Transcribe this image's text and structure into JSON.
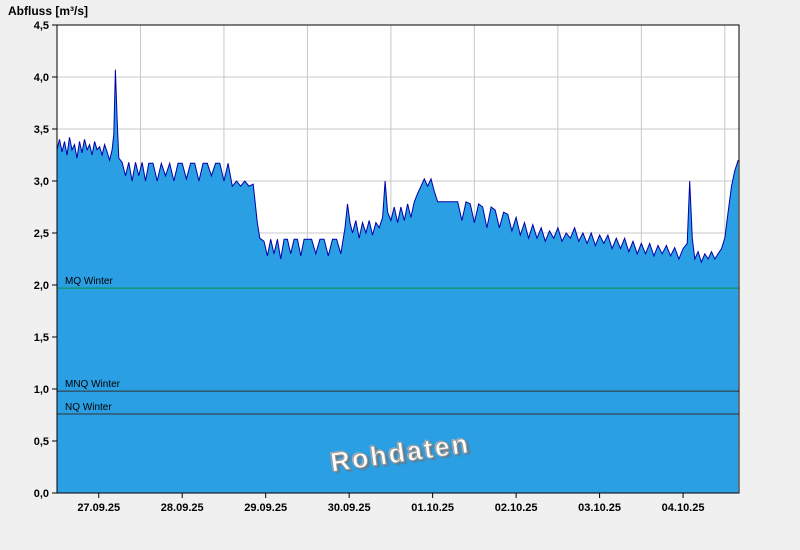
{
  "title": "Abfluss [m³/s]",
  "watermark": "Rohdaten",
  "chart_data": {
    "type": "area",
    "title": "Abfluss [m³/s]",
    "ylabel": "Abfluss [m³/s]",
    "series_name": "Abfluss Rohdaten",
    "ylim": [
      0,
      4.5
    ],
    "y_tick_step": 0.5,
    "y_tick_labels": [
      "0,0",
      "0,5",
      "1,0",
      "1,5",
      "2,0",
      "2,5",
      "3,0",
      "3,5",
      "4,0",
      "4,5"
    ],
    "x_tick_labels": [
      "27.09.25",
      "28.09.25",
      "29.09.25",
      "30.09.25",
      "01.10.25",
      "02.10.25",
      "03.10.25",
      "04.10.25"
    ],
    "x_label_positions": [
      0.5,
      1.5,
      2.5,
      3.5,
      4.5,
      5.5,
      6.5,
      7.5
    ],
    "x_day_boundaries": [
      1,
      2,
      3,
      4,
      5,
      6,
      7,
      8
    ],
    "x_range_days": [
      0,
      8.17
    ],
    "grid": true,
    "legend": "none",
    "colors": {
      "fill": "#2B9FE3",
      "line": "#0000A8",
      "grid": "#c8c8c8",
      "frame": "#000000",
      "mq_line": "#009944",
      "ref_line": "#303030",
      "plot_bg": "#ffffff",
      "page_bg": "#f0f0f0"
    },
    "reference_lines": [
      {
        "label": "MQ Winter",
        "value": 1.97,
        "color": "#009944"
      },
      {
        "label": "MNQ Winter",
        "value": 0.98,
        "color": "#303030"
      },
      {
        "label": "NQ Winter",
        "value": 0.76,
        "color": "#303030"
      }
    ],
    "points": [
      [
        0.0,
        3.3
      ],
      [
        0.03,
        3.4
      ],
      [
        0.06,
        3.28
      ],
      [
        0.09,
        3.38
      ],
      [
        0.12,
        3.25
      ],
      [
        0.15,
        3.42
      ],
      [
        0.18,
        3.3
      ],
      [
        0.21,
        3.35
      ],
      [
        0.24,
        3.22
      ],
      [
        0.27,
        3.38
      ],
      [
        0.3,
        3.27
      ],
      [
        0.33,
        3.4
      ],
      [
        0.36,
        3.3
      ],
      [
        0.39,
        3.35
      ],
      [
        0.42,
        3.25
      ],
      [
        0.45,
        3.38
      ],
      [
        0.48,
        3.3
      ],
      [
        0.51,
        3.33
      ],
      [
        0.54,
        3.25
      ],
      [
        0.57,
        3.35
      ],
      [
        0.6,
        3.28
      ],
      [
        0.63,
        3.2
      ],
      [
        0.66,
        3.3
      ],
      [
        0.68,
        3.45
      ],
      [
        0.7,
        4.07
      ],
      [
        0.72,
        3.6
      ],
      [
        0.74,
        3.22
      ],
      [
        0.78,
        3.18
      ],
      [
        0.82,
        3.05
      ],
      [
        0.86,
        3.18
      ],
      [
        0.9,
        3.0
      ],
      [
        0.94,
        3.18
      ],
      [
        0.98,
        3.05
      ],
      [
        1.02,
        3.18
      ],
      [
        1.06,
        3.0
      ],
      [
        1.1,
        3.17
      ],
      [
        1.15,
        3.17
      ],
      [
        1.2,
        3.0
      ],
      [
        1.25,
        3.17
      ],
      [
        1.3,
        3.05
      ],
      [
        1.35,
        3.17
      ],
      [
        1.4,
        3.0
      ],
      [
        1.45,
        3.17
      ],
      [
        1.5,
        3.17
      ],
      [
        1.55,
        3.02
      ],
      [
        1.6,
        3.17
      ],
      [
        1.65,
        3.17
      ],
      [
        1.7,
        3.0
      ],
      [
        1.75,
        3.17
      ],
      [
        1.8,
        3.17
      ],
      [
        1.85,
        3.05
      ],
      [
        1.9,
        3.17
      ],
      [
        1.95,
        3.17
      ],
      [
        2.0,
        3.0
      ],
      [
        2.05,
        3.17
      ],
      [
        2.1,
        2.95
      ],
      [
        2.15,
        3.0
      ],
      [
        2.2,
        2.95
      ],
      [
        2.25,
        3.0
      ],
      [
        2.3,
        2.95
      ],
      [
        2.35,
        2.97
      ],
      [
        2.4,
        2.6
      ],
      [
        2.43,
        2.45
      ],
      [
        2.48,
        2.42
      ],
      [
        2.52,
        2.28
      ],
      [
        2.56,
        2.44
      ],
      [
        2.6,
        2.3
      ],
      [
        2.64,
        2.44
      ],
      [
        2.68,
        2.25
      ],
      [
        2.72,
        2.44
      ],
      [
        2.76,
        2.44
      ],
      [
        2.8,
        2.3
      ],
      [
        2.84,
        2.44
      ],
      [
        2.88,
        2.44
      ],
      [
        2.92,
        2.28
      ],
      [
        2.96,
        2.44
      ],
      [
        3.0,
        2.44
      ],
      [
        3.05,
        2.44
      ],
      [
        3.1,
        2.3
      ],
      [
        3.15,
        2.44
      ],
      [
        3.2,
        2.44
      ],
      [
        3.25,
        2.28
      ],
      [
        3.3,
        2.44
      ],
      [
        3.35,
        2.44
      ],
      [
        3.4,
        2.3
      ],
      [
        3.45,
        2.55
      ],
      [
        3.48,
        2.78
      ],
      [
        3.51,
        2.6
      ],
      [
        3.54,
        2.5
      ],
      [
        3.58,
        2.62
      ],
      [
        3.62,
        2.45
      ],
      [
        3.66,
        2.6
      ],
      [
        3.7,
        2.5
      ],
      [
        3.74,
        2.62
      ],
      [
        3.78,
        2.48
      ],
      [
        3.82,
        2.6
      ],
      [
        3.86,
        2.55
      ],
      [
        3.9,
        2.65
      ],
      [
        3.93,
        3.0
      ],
      [
        3.96,
        2.7
      ],
      [
        4.0,
        2.62
      ],
      [
        4.04,
        2.75
      ],
      [
        4.08,
        2.6
      ],
      [
        4.12,
        2.75
      ],
      [
        4.16,
        2.62
      ],
      [
        4.2,
        2.78
      ],
      [
        4.24,
        2.65
      ],
      [
        4.28,
        2.8
      ],
      [
        4.32,
        2.88
      ],
      [
        4.36,
        2.95
      ],
      [
        4.4,
        3.02
      ],
      [
        4.44,
        2.95
      ],
      [
        4.48,
        3.02
      ],
      [
        4.52,
        2.9
      ],
      [
        4.56,
        2.8
      ],
      [
        4.6,
        2.8
      ],
      [
        4.65,
        2.8
      ],
      [
        4.7,
        2.8
      ],
      [
        4.75,
        2.8
      ],
      [
        4.8,
        2.8
      ],
      [
        4.85,
        2.62
      ],
      [
        4.9,
        2.8
      ],
      [
        4.95,
        2.78
      ],
      [
        5.0,
        2.6
      ],
      [
        5.05,
        2.78
      ],
      [
        5.1,
        2.75
      ],
      [
        5.15,
        2.55
      ],
      [
        5.2,
        2.75
      ],
      [
        5.25,
        2.72
      ],
      [
        5.3,
        2.55
      ],
      [
        5.35,
        2.7
      ],
      [
        5.4,
        2.68
      ],
      [
        5.45,
        2.52
      ],
      [
        5.5,
        2.65
      ],
      [
        5.55,
        2.48
      ],
      [
        5.6,
        2.6
      ],
      [
        5.65,
        2.45
      ],
      [
        5.7,
        2.58
      ],
      [
        5.75,
        2.45
      ],
      [
        5.8,
        2.55
      ],
      [
        5.85,
        2.42
      ],
      [
        5.9,
        2.52
      ],
      [
        5.95,
        2.45
      ],
      [
        6.0,
        2.55
      ],
      [
        6.05,
        2.42
      ],
      [
        6.1,
        2.5
      ],
      [
        6.15,
        2.45
      ],
      [
        6.2,
        2.55
      ],
      [
        6.25,
        2.42
      ],
      [
        6.3,
        2.5
      ],
      [
        6.35,
        2.4
      ],
      [
        6.4,
        2.5
      ],
      [
        6.45,
        2.38
      ],
      [
        6.5,
        2.48
      ],
      [
        6.55,
        2.4
      ],
      [
        6.6,
        2.48
      ],
      [
        6.65,
        2.35
      ],
      [
        6.7,
        2.45
      ],
      [
        6.75,
        2.35
      ],
      [
        6.8,
        2.45
      ],
      [
        6.85,
        2.32
      ],
      [
        6.9,
        2.42
      ],
      [
        6.95,
        2.3
      ],
      [
        7.0,
        2.4
      ],
      [
        7.05,
        2.3
      ],
      [
        7.1,
        2.4
      ],
      [
        7.15,
        2.28
      ],
      [
        7.2,
        2.38
      ],
      [
        7.25,
        2.3
      ],
      [
        7.3,
        2.38
      ],
      [
        7.35,
        2.28
      ],
      [
        7.4,
        2.36
      ],
      [
        7.45,
        2.25
      ],
      [
        7.5,
        2.35
      ],
      [
        7.55,
        2.4
      ],
      [
        7.58,
        3.0
      ],
      [
        7.61,
        2.45
      ],
      [
        7.64,
        2.25
      ],
      [
        7.68,
        2.32
      ],
      [
        7.72,
        2.22
      ],
      [
        7.76,
        2.3
      ],
      [
        7.8,
        2.25
      ],
      [
        7.84,
        2.32
      ],
      [
        7.88,
        2.25
      ],
      [
        7.92,
        2.3
      ],
      [
        7.96,
        2.35
      ],
      [
        8.0,
        2.45
      ],
      [
        8.04,
        2.7
      ],
      [
        8.08,
        2.95
      ],
      [
        8.12,
        3.1
      ],
      [
        8.16,
        3.2
      ]
    ]
  }
}
